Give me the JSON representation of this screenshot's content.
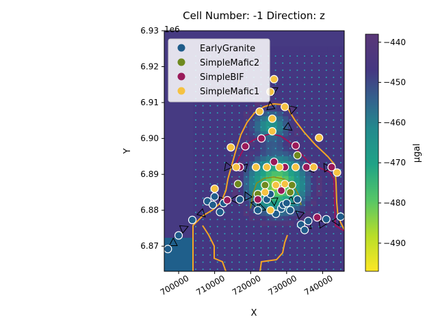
{
  "chart_data": {
    "type": "scatter",
    "title": "Cell Number: -1 Direction: z",
    "xlabel": "X",
    "ylabel": "Y",
    "y_offset_label": "1e6",
    "xlim": [
      696000,
      746000
    ],
    "ylim": [
      6.863,
      6.93
    ],
    "x_ticks": [
      700000,
      710000,
      720000,
      730000,
      740000
    ],
    "x_tick_labels": [
      "700000",
      "710000",
      "720000",
      "730000",
      "740000"
    ],
    "y_ticks": [
      6.87,
      6.88,
      6.89,
      6.9,
      6.91,
      6.92,
      6.93
    ],
    "y_tick_labels": [
      "6.87",
      "6.88",
      "6.89",
      "6.90",
      "6.91",
      "6.92",
      "6.93"
    ],
    "legend_position": "top-left",
    "colorbar": {
      "label": "μgal",
      "colormap": "viridis_r",
      "range": [
        -497,
        -438
      ],
      "ticks": [
        -440,
        -450,
        -460,
        -470,
        -480,
        -490
      ],
      "tick_labels": [
        "−440",
        "−450",
        "−460",
        "−470",
        "−480",
        "−490"
      ]
    },
    "series": [
      {
        "name": "EarlyGranite",
        "color": "#1f5c8a",
        "points": [
          [
            697000,
            6.8692
          ],
          [
            700000,
            6.873
          ],
          [
            703800,
            6.8773
          ],
          [
            708000,
            6.8825
          ],
          [
            710000,
            6.8838
          ],
          [
            709500,
            6.8815
          ],
          [
            711500,
            6.8795
          ],
          [
            712500,
            6.882
          ],
          [
            717000,
            6.883
          ],
          [
            722000,
            6.88
          ],
          [
            724500,
            6.883
          ],
          [
            725500,
            6.8845
          ],
          [
            727000,
            6.879
          ],
          [
            728500,
            6.8805
          ],
          [
            729000,
            6.8815
          ],
          [
            730000,
            6.882
          ],
          [
            731000,
            6.88
          ],
          [
            733000,
            6.883
          ],
          [
            734000,
            6.876
          ],
          [
            735000,
            6.8745
          ],
          [
            736000,
            6.877
          ],
          [
            741000,
            6.8775
          ],
          [
            745000,
            6.8782
          ]
        ]
      },
      {
        "name": "SimpleMafic2",
        "color": "#6f8a1f",
        "points": [
          [
            716500,
            6.8873
          ],
          [
            722000,
            6.8845
          ],
          [
            724000,
            6.887
          ],
          [
            728500,
            6.886
          ],
          [
            731000,
            6.885
          ],
          [
            733000,
            6.8953
          ],
          [
            731500,
            6.887
          ]
        ]
      },
      {
        "name": "SimpleBIF",
        "color": "#9a1a5a",
        "points": [
          [
            717000,
            6.892
          ],
          [
            718500,
            6.8978
          ],
          [
            723000,
            6.9
          ],
          [
            726500,
            6.8935
          ],
          [
            729500,
            6.892
          ],
          [
            732500,
            6.898
          ],
          [
            735500,
            6.892
          ],
          [
            713500,
            6.8828
          ],
          [
            722000,
            6.883
          ],
          [
            728500,
            6.8855
          ],
          [
            738500,
            6.878
          ],
          [
            742500,
            6.892
          ]
        ]
      },
      {
        "name": "SimpleMafic1",
        "color": "#f5c242",
        "points": [
          [
            726500,
            6.9165
          ],
          [
            725500,
            6.913
          ],
          [
            722500,
            6.9075
          ],
          [
            729500,
            6.9088
          ],
          [
            726000,
            6.9055
          ],
          [
            726000,
            6.902
          ],
          [
            739000,
            6.9002
          ],
          [
            714500,
            6.8975
          ],
          [
            716000,
            6.892
          ],
          [
            721500,
            6.892
          ],
          [
            724500,
            6.892
          ],
          [
            728000,
            6.892
          ],
          [
            732500,
            6.892
          ],
          [
            737500,
            6.892
          ],
          [
            744000,
            6.8905
          ],
          [
            710000,
            6.886
          ],
          [
            724000,
            6.885
          ],
          [
            727000,
            6.887
          ],
          [
            729500,
            6.8873
          ],
          [
            725500,
            6.88
          ]
        ]
      }
    ],
    "triangle_markers": [
      [
        698500,
        6.871
      ],
      [
        701500,
        6.875
      ],
      [
        706500,
        6.879
      ],
      [
        712000,
        6.8825
      ],
      [
        715500,
        6.883
      ],
      [
        719000,
        6.884
      ],
      [
        721500,
        6.882
      ],
      [
        723000,
        6.8805
      ],
      [
        726500,
        6.8825
      ],
      [
        731000,
        6.8825
      ],
      [
        733500,
        6.879
      ],
      [
        736000,
        6.876
      ],
      [
        740000,
        6.8762
      ],
      [
        744000,
        6.8768
      ],
      [
        713500,
        6.892
      ],
      [
        718000,
        6.892
      ],
      [
        725500,
        6.909
      ],
      [
        726500,
        6.9135
      ],
      [
        730500,
        6.903
      ],
      [
        731500,
        6.908
      ],
      [
        736500,
        6.8915
      ],
      [
        741000,
        6.892
      ]
    ]
  }
}
